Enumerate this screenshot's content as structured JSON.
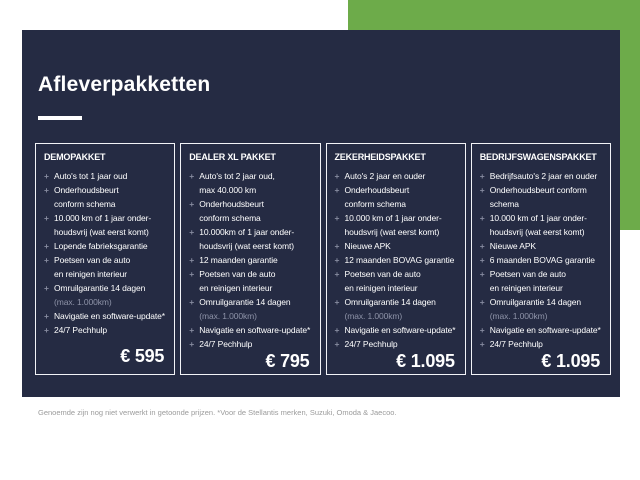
{
  "page": {
    "title": "Afleverpakketten",
    "footnote": "Genoemde zijn nog niet verwerkt in getoonde prijzen. *Voor de Stellantis merken, Suzuki, Omoda & Jaecoo."
  },
  "ui": {
    "bullet": "+"
  },
  "colors": {
    "background": "#ffffff",
    "panel_navy": "#252b43",
    "accent_green": "#6dab4a",
    "text": "#ffffff",
    "bullet": "#878ca0",
    "muted_text": "#8e93a8",
    "card_border": "#f2f3f7",
    "footnote_text": "#9b9b9b"
  },
  "packages": [
    {
      "name": "DEMOPAKKET",
      "price": "€ 595",
      "features": [
        [
          "Auto's tot 1 jaar oud"
        ],
        [
          "Onderhoudsbeurt",
          "conform schema"
        ],
        [
          "10.000 km of 1 jaar onder-",
          "houdsvrij (wat eerst komt)"
        ],
        [
          "Lopende fabrieksgarantie"
        ],
        [
          "Poetsen van de auto",
          "en reinigen interieur"
        ],
        [
          "Omruilgarantie 14 dagen",
          {
            "text": "(max. 1.000km)",
            "muted": true
          }
        ],
        [
          "Navigatie en software-update*"
        ],
        [
          "24/7 Pechhulp"
        ]
      ]
    },
    {
      "name": "DEALER XL PAKKET",
      "price": "€ 795",
      "features": [
        [
          "Auto's tot 2 jaar oud,",
          "max 40.000 km"
        ],
        [
          "Onderhoudsbeurt",
          "conform schema"
        ],
        [
          "10.000km of 1 jaar onder-",
          "houdsvrij (wat eerst komt)"
        ],
        [
          "12 maanden garantie"
        ],
        [
          "Poetsen van de auto",
          "en reinigen interieur"
        ],
        [
          "Omruilgarantie 14 dagen",
          {
            "text": "(max. 1.000km)",
            "muted": true
          }
        ],
        [
          "Navigatie en software-update*"
        ],
        [
          "24/7 Pechhulp"
        ]
      ]
    },
    {
      "name": "ZEKERHEIDSPAKKET",
      "price": "€ 1.095",
      "features": [
        [
          "Auto's 2 jaar en ouder"
        ],
        [
          "Onderhoudsbeurt",
          "conform schema"
        ],
        [
          "10.000 km of 1 jaar onder-",
          "houdsvrij (wat eerst komt)"
        ],
        [
          "Nieuwe APK"
        ],
        [
          "12 maanden BOVAG garantie"
        ],
        [
          "Poetsen van de auto",
          "en reinigen interieur"
        ],
        [
          "Omruilgarantie 14 dagen",
          {
            "text": "(max. 1.000km)",
            "muted": true
          }
        ],
        [
          "Navigatie en software-update*"
        ],
        [
          "24/7 Pechhulp"
        ]
      ]
    },
    {
      "name": "BEDRIJFSWAGENSPAKKET",
      "price": "€ 1.095",
      "features": [
        [
          "Bedrijfsauto's 2 jaar en ouder"
        ],
        [
          "Onderhoudsbeurt conform",
          "schema"
        ],
        [
          "10.000 km of 1 jaar onder-",
          "houdsvrij (wat eerst komt)"
        ],
        [
          "Nieuwe APK"
        ],
        [
          "6 maanden BOVAG garantie"
        ],
        [
          "Poetsen van de auto",
          "en reinigen interieur"
        ],
        [
          "Omruilgarantie 14 dagen",
          {
            "text": "(max. 1.000km)",
            "muted": true
          }
        ],
        [
          "Navigatie en software-update*"
        ],
        [
          "24/7 Pechhulp"
        ]
      ]
    }
  ]
}
